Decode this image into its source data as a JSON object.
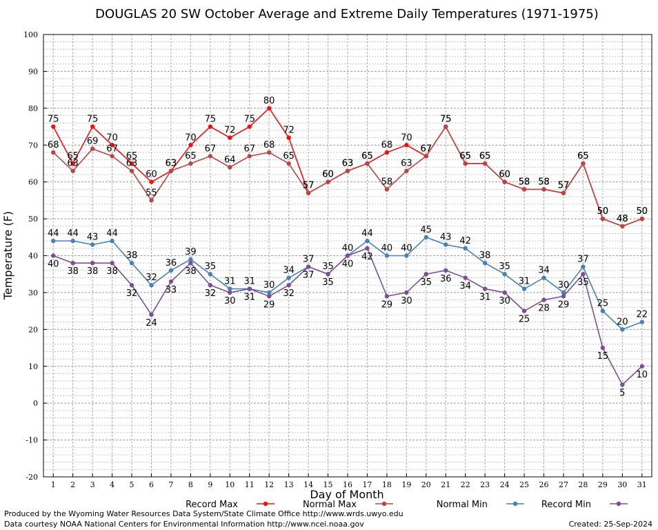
{
  "chart_data": {
    "type": "line",
    "title": "DOUGLAS 20 SW October Average and Extreme Daily Temperatures (1971-1975)",
    "xlabel": "Day of Month",
    "ylabel": "Temperature (F)",
    "ylim": [
      -20,
      100
    ],
    "yticks": [
      -20,
      -10,
      0,
      10,
      20,
      30,
      40,
      50,
      60,
      70,
      80,
      90,
      100
    ],
    "x": [
      1,
      2,
      3,
      4,
      5,
      6,
      7,
      8,
      9,
      10,
      11,
      12,
      13,
      14,
      15,
      16,
      17,
      18,
      19,
      20,
      21,
      22,
      23,
      24,
      25,
      26,
      27,
      28,
      29,
      30,
      31
    ],
    "grid": true,
    "legend_position": "bottom",
    "series": [
      {
        "name": "Record Max",
        "color": "#ee1111",
        "labelPos": "above",
        "values": [
          75,
          65,
          75,
          70,
          65,
          60,
          63,
          70,
          75,
          72,
          75,
          80,
          72,
          57,
          60,
          63,
          65,
          68,
          70,
          67,
          75,
          65,
          65,
          60,
          58,
          58,
          57,
          65,
          50,
          48,
          50
        ]
      },
      {
        "name": "Normal Max",
        "color": "#bb4444",
        "labelPos": "above",
        "values": [
          68,
          63,
          69,
          67,
          63,
          55,
          63,
          65,
          67,
          64,
          67,
          68,
          65,
          57,
          60,
          63,
          65,
          58,
          63,
          67,
          75,
          65,
          65,
          60,
          58,
          58,
          57,
          65,
          50,
          48,
          50
        ]
      },
      {
        "name": "Normal Min",
        "color": "#4682b4",
        "labelPos": "above",
        "values": [
          44,
          44,
          43,
          44,
          38,
          32,
          36,
          39,
          35,
          31,
          31,
          30,
          34,
          37,
          35,
          40,
          44,
          40,
          40,
          45,
          43,
          42,
          38,
          35,
          31,
          34,
          30,
          37,
          25,
          20,
          22
        ]
      },
      {
        "name": "Record Min",
        "color": "#7b4e96",
        "labelPos": "below",
        "values": [
          40,
          38,
          38,
          38,
          32,
          24,
          33,
          38,
          32,
          30,
          31,
          29,
          32,
          37,
          35,
          40,
          42,
          29,
          30,
          35,
          36,
          34,
          31,
          30,
          25,
          28,
          29,
          35,
          15,
          5,
          10
        ]
      }
    ]
  },
  "footer": {
    "produced_by": "Produced by the Wyoming Water Resources Data System/State Climate Office http://www.wrds.uwyo.edu",
    "data_courtesy": "Data courtesy NOAA National Centers for Environmental Information http://www.ncei.noaa.gov",
    "created": "Created:  25-Sep-2024"
  }
}
